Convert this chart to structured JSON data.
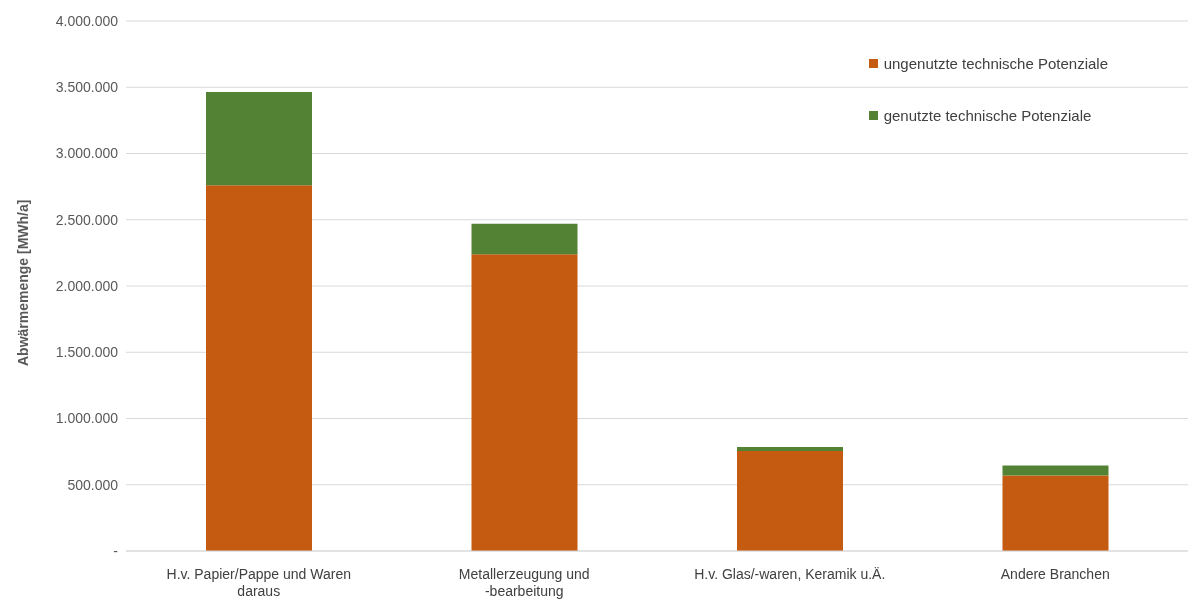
{
  "chart_data": {
    "type": "bar",
    "stacked": true,
    "ylabel": "Abwärmemenge [MWh/a]",
    "categories": [
      "H.v. Papier/Pappe und Waren daraus",
      "Metallerzeugung und -bearbeitung",
      "H.v. Glas/-waren, Keramik u.Ä.",
      "Andere Branchen"
    ],
    "series": [
      {
        "name": "ungenutzte technische Potenziale",
        "color": "#c55a11",
        "values": [
          2760000,
          2240000,
          755000,
          570000
        ]
      },
      {
        "name": "genutzte technische Potenziale",
        "color": "#548235",
        "values": [
          705000,
          230000,
          30000,
          75000
        ]
      }
    ],
    "ylim": [
      0,
      4000000
    ],
    "yticks": [
      {
        "value": 0,
        "label": "-"
      },
      {
        "value": 500000,
        "label": "500.000"
      },
      {
        "value": 1000000,
        "label": "1.000.000"
      },
      {
        "value": 1500000,
        "label": "1.500.000"
      },
      {
        "value": 2000000,
        "label": "2.000.000"
      },
      {
        "value": 2500000,
        "label": "2.500.000"
      },
      {
        "value": 3000000,
        "label": "3.000.000"
      },
      {
        "value": 3500000,
        "label": "3.500.000"
      },
      {
        "value": 4000000,
        "label": "4.000.000"
      }
    ],
    "grid": "y",
    "legend": "top right"
  }
}
